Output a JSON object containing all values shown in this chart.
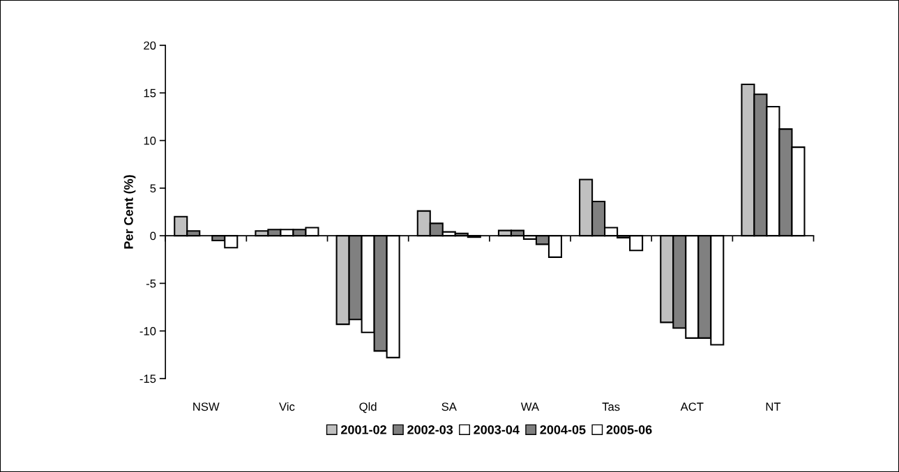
{
  "chart_data": {
    "type": "bar",
    "ylabel": "Per Cent (%)",
    "categories": [
      "NSW",
      "Vic",
      "Qld",
      "SA",
      "WA",
      "Tas",
      "ACT",
      "NT"
    ],
    "series": [
      {
        "name": "2001-02",
        "color": "#c0c0c0",
        "values": [
          2.0,
          0.5,
          -9.3,
          2.6,
          0.55,
          5.9,
          -9.1,
          15.9
        ]
      },
      {
        "name": "2002-03",
        "color": "#808080",
        "values": [
          0.5,
          0.65,
          -8.8,
          1.3,
          0.55,
          3.6,
          -9.7,
          14.85
        ]
      },
      {
        "name": "2003-04",
        "color": "#ffffff",
        "values": [
          null,
          0.65,
          -10.15,
          0.4,
          -0.35,
          0.85,
          -10.75,
          13.55
        ]
      },
      {
        "name": "2004-05",
        "color": "#808080",
        "values": [
          -0.5,
          0.65,
          -12.1,
          0.25,
          -0.9,
          -0.2,
          -10.75,
          11.2
        ]
      },
      {
        "name": "2005-06",
        "color": "#ffffff",
        "values": [
          -1.25,
          0.85,
          -12.8,
          -0.15,
          -2.25,
          -1.55,
          -11.45,
          9.3
        ]
      }
    ],
    "ylim": [
      -15,
      20
    ],
    "yticks": [
      -15,
      -10,
      -5,
      0,
      5,
      10,
      15,
      20
    ],
    "legend": "bottom"
  }
}
